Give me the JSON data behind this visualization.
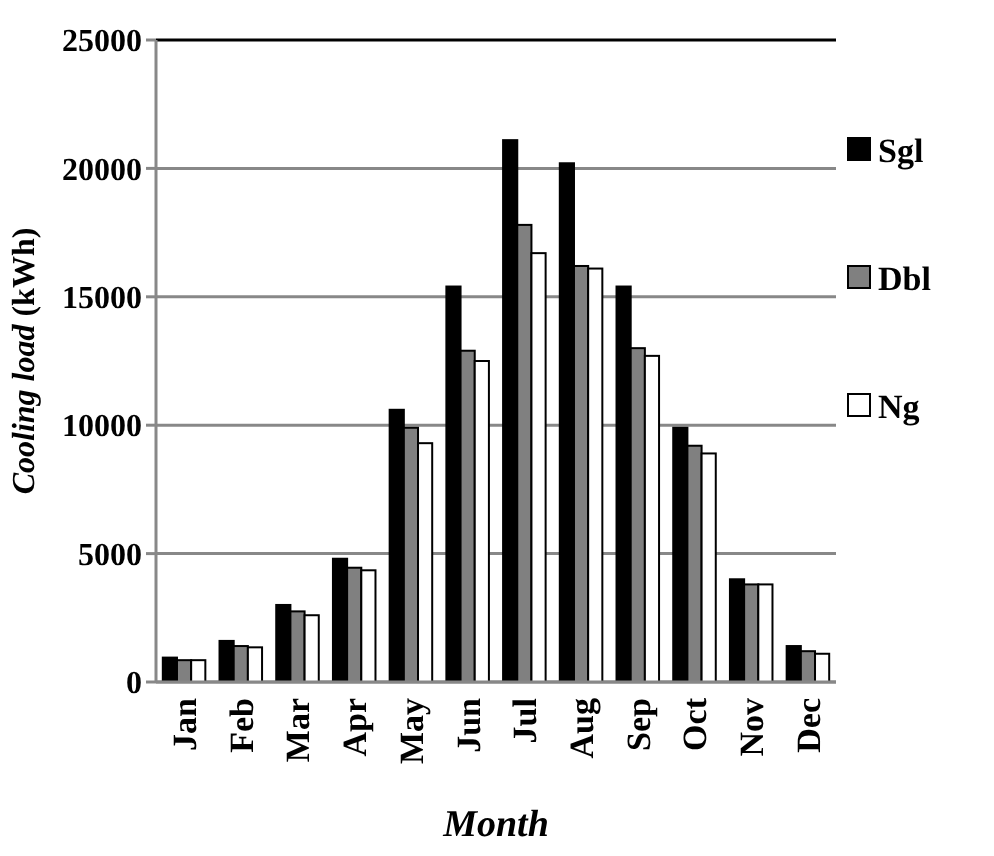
{
  "chart_data": {
    "type": "bar",
    "xlabel": "Month",
    "ylabel": "Cooling load (kWh)",
    "categories": [
      "Jan",
      "Feb",
      "Mar",
      "Apr",
      "May",
      "Jun",
      "Jul",
      "Aug",
      "Sep",
      "Oct",
      "Nov",
      "Dec"
    ],
    "series": [
      {
        "name": "Sgl",
        "color": "#000000",
        "values": [
          950,
          1600,
          3000,
          4800,
          10600,
          15400,
          21100,
          20200,
          15400,
          9900,
          4000,
          1400
        ]
      },
      {
        "name": "Dbl",
        "color": "#808080",
        "values": [
          850,
          1400,
          2750,
          4450,
          9900,
          12900,
          17800,
          16200,
          13000,
          9200,
          3800,
          1200
        ]
      },
      {
        "name": "Ng",
        "color": "#ffffff",
        "values": [
          850,
          1350,
          2600,
          4350,
          9300,
          12500,
          16700,
          16100,
          12700,
          8900,
          3800,
          1100
        ]
      }
    ],
    "ylim": [
      0,
      25000
    ],
    "yticks": [
      0,
      5000,
      10000,
      15000,
      20000,
      25000
    ],
    "grid": "y",
    "legend": "right"
  }
}
